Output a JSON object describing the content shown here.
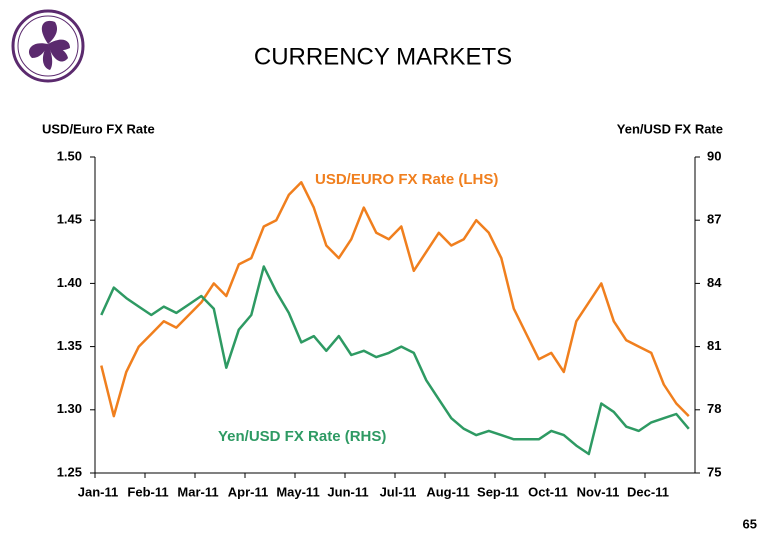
{
  "title": "CURRENCY MARKETS",
  "page_number": "65",
  "chart_data": {
    "type": "line",
    "y_label": "USD/Euro FX Rate",
    "y2_label": "Yen/USD FX Rate",
    "categories": [
      "Jan-11",
      null,
      null,
      null,
      "Feb-11",
      null,
      null,
      null,
      "Mar-11",
      null,
      null,
      null,
      "Apr-11",
      null,
      null,
      null,
      "May-11",
      null,
      null,
      null,
      "Jun-11",
      null,
      null,
      null,
      "Jul-11",
      null,
      null,
      null,
      "Aug-11",
      null,
      null,
      null,
      "Sep-11",
      null,
      null,
      null,
      "Oct-11",
      null,
      null,
      null,
      "Nov-11",
      null,
      null,
      null,
      "Dec-11",
      null,
      null,
      null
    ],
    "ylim": [
      1.25,
      1.5
    ],
    "yticks": [
      {
        "value": 1.5,
        "label": "1.50"
      },
      1.45,
      {
        "value": 1.4,
        "label": "1.40"
      },
      1.35,
      {
        "value": 1.3,
        "label": "1.30"
      },
      1.25
    ],
    "y2lim": [
      75,
      90
    ],
    "y2ticks": [
      90,
      87,
      84,
      81,
      78,
      75
    ],
    "grid": false,
    "series": [
      {
        "name": "USD/EURO FX Rate (LHS)",
        "color": "#f07f1e",
        "axis": "y",
        "values": [
          1.335,
          1.295,
          1.33,
          1.35,
          1.36,
          1.37,
          1.365,
          1.375,
          1.385,
          1.4,
          1.39,
          1.415,
          1.42,
          1.445,
          1.45,
          1.47,
          1.48,
          1.46,
          1.43,
          1.42,
          1.435,
          1.46,
          1.44,
          1.435,
          1.445,
          1.41,
          1.425,
          1.44,
          1.43,
          1.435,
          1.45,
          1.44,
          1.42,
          1.38,
          1.36,
          1.34,
          1.345,
          1.33,
          1.37,
          1.385,
          1.4,
          1.37,
          1.355,
          1.35,
          1.345,
          1.32,
          1.305,
          1.295
        ]
      },
      {
        "name": "Yen/USD FX Rate (RHS)",
        "color": "#2e9a63",
        "axis": "y2",
        "values": [
          82.5,
          83.8,
          83.3,
          82.9,
          82.5,
          82.9,
          82.6,
          83.0,
          83.4,
          82.8,
          80.0,
          81.8,
          82.5,
          84.8,
          83.6,
          82.6,
          81.2,
          81.5,
          80.8,
          81.5,
          80.6,
          80.8,
          80.5,
          80.7,
          81.0,
          80.7,
          79.4,
          78.5,
          77.6,
          77.1,
          76.8,
          77.0,
          76.8,
          76.6,
          76.6,
          76.6,
          77.0,
          76.8,
          76.3,
          75.9,
          78.3,
          77.9,
          77.2,
          77.0,
          77.4,
          77.6,
          77.8,
          77.1
        ]
      }
    ]
  }
}
